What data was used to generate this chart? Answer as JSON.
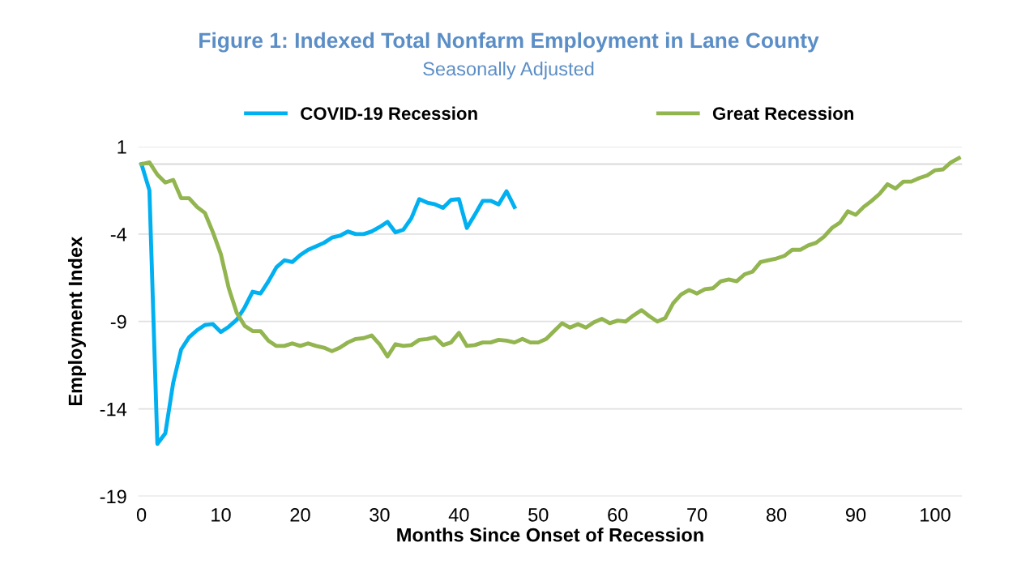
{
  "chart_data": {
    "type": "line",
    "title": "Figure 1: Indexed Total Nonfarm Employment in Lane County",
    "subtitle": "Seasonally Adjusted",
    "xlabel": "Months Since Onset of Recession",
    "ylabel": "Employment Index",
    "xlim": [
      -0.4,
      103.4
    ],
    "xticks": [
      0,
      10,
      20,
      30,
      40,
      50,
      60,
      70,
      80,
      90,
      100
    ],
    "ylim": [
      -19,
      1
    ],
    "yticks": [
      -19,
      -14,
      -9,
      -4,
      1
    ],
    "grid": "y",
    "legend": "top",
    "line_style": "solid",
    "marker": "none",
    "ref_lines": [
      {
        "axis": "y",
        "value": 0,
        "label": null,
        "color": "#d9d9d9"
      }
    ],
    "series": [
      {
        "name": "COVID-19 Recession",
        "color": "#00b0f0",
        "x": [
          0,
          1,
          2,
          3,
          4,
          5,
          6,
          7,
          8,
          9,
          10,
          11,
          12,
          13,
          14,
          15,
          16,
          17,
          18,
          19,
          20,
          21,
          22,
          23,
          24,
          25,
          26,
          27,
          28,
          29,
          30,
          31,
          32,
          33,
          34,
          35,
          36,
          37,
          38,
          39,
          40,
          41,
          42,
          43,
          44,
          45,
          46,
          47
        ],
        "values": [
          0,
          -1.5,
          -16.0,
          -15.4,
          -12.5,
          -10.6,
          -9.9,
          -9.5,
          -9.2,
          -9.15,
          -9.6,
          -9.3,
          -8.9,
          -8.2,
          -7.3,
          -7.4,
          -6.7,
          -5.9,
          -5.5,
          -5.6,
          -5.2,
          -4.9,
          -4.7,
          -4.5,
          -4.2,
          -4.1,
          -3.85,
          -4.0,
          -4.0,
          -3.85,
          -3.6,
          -3.3,
          -3.9,
          -3.75,
          -3.1,
          -2.0,
          -2.2,
          -2.3,
          -2.5,
          -2.05,
          -2.0,
          -3.65,
          -2.9,
          -2.1,
          -2.1,
          -2.3,
          -1.55,
          -2.45
        ]
      },
      {
        "name": "Great Recession",
        "color": "#92b550",
        "x": [
          0,
          1,
          2,
          3,
          4,
          5,
          6,
          7,
          8,
          9,
          10,
          11,
          12,
          13,
          14,
          15,
          16,
          17,
          18,
          19,
          20,
          21,
          22,
          23,
          24,
          25,
          26,
          27,
          28,
          29,
          30,
          31,
          32,
          33,
          34,
          35,
          36,
          37,
          38,
          39,
          40,
          41,
          42,
          43,
          44,
          45,
          46,
          47,
          48,
          49,
          50,
          51,
          52,
          53,
          54,
          55,
          56,
          57,
          58,
          59,
          60,
          61,
          62,
          63,
          64,
          65,
          66,
          67,
          68,
          69,
          70,
          71,
          72,
          73,
          74,
          75,
          76,
          77,
          78,
          79,
          80,
          81,
          82,
          83,
          84,
          85,
          86,
          87,
          88,
          89,
          90,
          91,
          92,
          93,
          94,
          95,
          96,
          97,
          98,
          99,
          100,
          101,
          102,
          103
        ],
        "values": [
          0,
          0.1,
          -0.6,
          -1.05,
          -0.9,
          -1.95,
          -1.95,
          -2.45,
          -2.8,
          -3.9,
          -5.15,
          -7.1,
          -8.5,
          -9.25,
          -9.55,
          -9.55,
          -10.1,
          -10.4,
          -10.4,
          -10.25,
          -10.4,
          -10.25,
          -10.4,
          -10.5,
          -10.7,
          -10.5,
          -10.2,
          -10.0,
          -9.95,
          -9.8,
          -10.3,
          -11.0,
          -10.3,
          -10.4,
          -10.35,
          -10.05,
          -10.0,
          -9.9,
          -10.35,
          -10.2,
          -9.65,
          -10.4,
          -10.35,
          -10.2,
          -10.2,
          -10.05,
          -10.1,
          -10.2,
          -10.0,
          -10.2,
          -10.2,
          -10.0,
          -9.55,
          -9.1,
          -9.35,
          -9.15,
          -9.35,
          -9.05,
          -8.85,
          -9.1,
          -8.95,
          -9.0,
          -8.65,
          -8.35,
          -8.7,
          -9.0,
          -8.8,
          -7.95,
          -7.45,
          -7.2,
          -7.4,
          -7.15,
          -7.1,
          -6.7,
          -6.6,
          -6.7,
          -6.3,
          -6.15,
          -5.6,
          -5.5,
          -5.4,
          -5.25,
          -4.9,
          -4.9,
          -4.65,
          -4.5,
          -4.15,
          -3.65,
          -3.35,
          -2.7,
          -2.9,
          -2.45,
          -2.1,
          -1.7,
          -1.15,
          -1.4,
          -1.0,
          -1.0,
          -0.8,
          -0.65,
          -0.35,
          -0.3,
          0.1,
          0.35
        ]
      }
    ]
  }
}
